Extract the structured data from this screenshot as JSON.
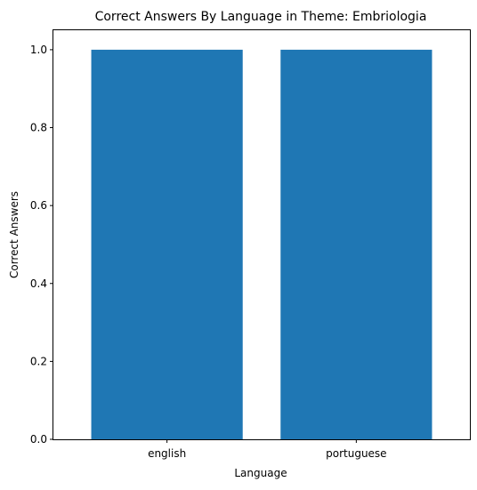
{
  "chart_data": {
    "type": "bar",
    "title": "Correct Answers By Language in Theme: Embriologia",
    "xlabel": "Language",
    "ylabel": "Correct Answers",
    "categories": [
      "english",
      "portuguese"
    ],
    "values": [
      1.0,
      1.0
    ],
    "ylim": [
      0,
      1.05
    ],
    "yticks": [
      0.0,
      0.2,
      0.4,
      0.6,
      0.8,
      1.0
    ],
    "ytick_labels": [
      "0.0",
      "0.2",
      "0.4",
      "0.6",
      "0.8",
      "1.0"
    ],
    "grid": false,
    "legend": "none",
    "bar_color": "#1f77b4"
  }
}
